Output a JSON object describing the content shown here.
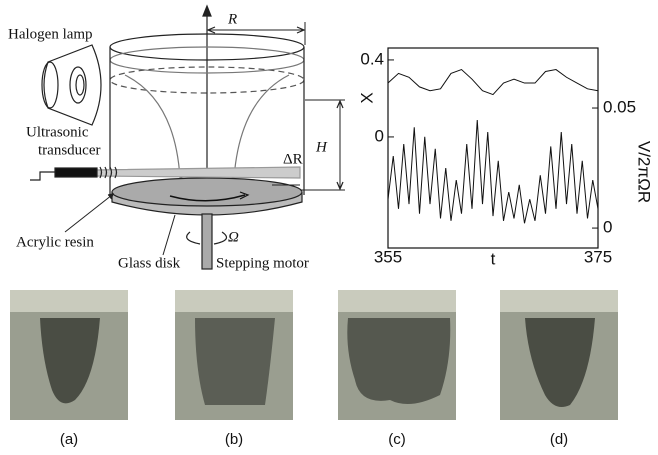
{
  "diagram": {
    "lamp": "Halogen lamp",
    "radius": "R",
    "transducer": [
      "Ultrasonic",
      "transducer"
    ],
    "height": "H",
    "delta_r": "ΔR",
    "resin": "Acrylic resin",
    "disk": "Glass disk",
    "omega": "Ω",
    "motor": "Stepping motor"
  },
  "chart_data": {
    "type": "line",
    "xlabel": "t",
    "ylabel": "X",
    "y2label": "V/2πΩR",
    "xlim": [
      355,
      375
    ],
    "xticks": [
      355,
      375
    ],
    "ylim": [
      -0.577,
      0.462
    ],
    "yticks": [
      0,
      0.4
    ],
    "y2lim": [
      -0.0083,
      0.075
    ],
    "y2ticks": [
      0,
      0.05
    ],
    "series": [
      {
        "name": "X",
        "color": "#111111",
        "x": [
          355,
          356,
          357,
          358,
          359,
          360,
          361,
          362,
          363,
          364,
          365,
          366,
          367,
          368,
          369,
          370,
          371,
          372,
          373,
          374,
          375
        ],
        "values": [
          0.28,
          0.33,
          0.31,
          0.26,
          0.24,
          0.25,
          0.33,
          0.35,
          0.3,
          0.24,
          0.22,
          0.28,
          0.3,
          0.28,
          0.28,
          0.34,
          0.35,
          0.31,
          0.28,
          0.25,
          0.24
        ]
      },
      {
        "name": "V/2πΩR",
        "color": "#111111",
        "axis": "y2",
        "x": [
          355,
          355.5,
          356,
          356.5,
          357,
          357.5,
          358,
          358.5,
          359,
          359.5,
          360,
          360.5,
          361,
          361.5,
          362,
          362.5,
          363,
          363.5,
          364,
          364.5,
          365,
          365.5,
          366,
          366.5,
          367,
          367.5,
          368,
          368.5,
          369,
          369.5,
          370,
          370.5,
          371,
          371.5,
          372,
          372.5,
          373,
          373.5,
          374,
          374.5,
          375
        ],
        "values": [
          0.012,
          0.03,
          0.008,
          0.035,
          0.01,
          0.042,
          0.006,
          0.038,
          0.01,
          0.033,
          0.004,
          0.025,
          0.003,
          0.02,
          0.006,
          0.035,
          0.008,
          0.045,
          0.01,
          0.04,
          0.005,
          0.028,
          0.003,
          0.015,
          0.004,
          0.018,
          0.002,
          0.012,
          0.003,
          0.022,
          0.006,
          0.034,
          0.008,
          0.04,
          0.01,
          0.035,
          0.006,
          0.028,
          0.004,
          0.02,
          0.008
        ]
      }
    ]
  },
  "photos": {
    "captions": [
      "(a)",
      "(b)",
      "(c)",
      "(d)"
    ]
  }
}
